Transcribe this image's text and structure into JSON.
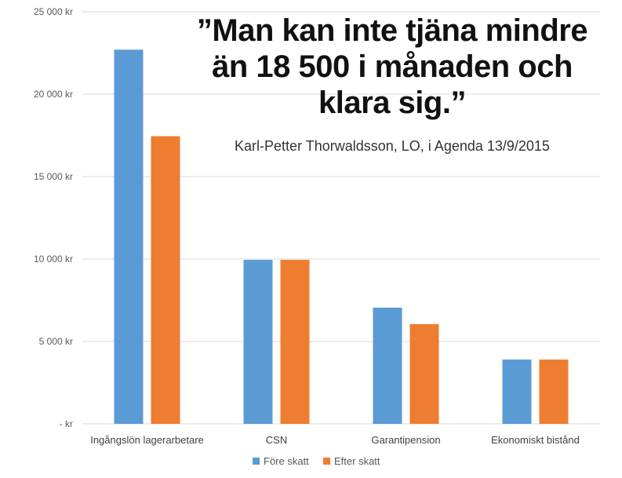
{
  "quote": {
    "text": "”Man kan inte tjäna mindre än 18 500 i månaden och klara sig.”",
    "attribution": "Karl-Petter Thorwaldsson, LO, i Agenda 13/9/2015"
  },
  "colors": {
    "series_1": "#5b9bd5",
    "series_2": "#ed7d31",
    "grid": "#d9d9d9"
  },
  "chart_data": {
    "type": "bar",
    "categories": [
      "Ingångslön lagerarbetare",
      "CSN",
      "Garantipension",
      "Ekonomiskt bistånd"
    ],
    "series": [
      {
        "name": "Före skatt",
        "values": [
          22700,
          9950,
          7050,
          3900
        ]
      },
      {
        "name": "Efter skatt",
        "values": [
          17450,
          9950,
          6050,
          3900
        ]
      }
    ],
    "yticks": [
      0,
      5000,
      10000,
      15000,
      20000,
      25000
    ],
    "ytick_labels": [
      "-   kr",
      "5 000 kr",
      "10 000 kr",
      "15 000 kr",
      "20 000 kr",
      "25 000 kr"
    ],
    "ylim": [
      0,
      25000
    ],
    "grid": true,
    "legend_position": "bottom"
  }
}
